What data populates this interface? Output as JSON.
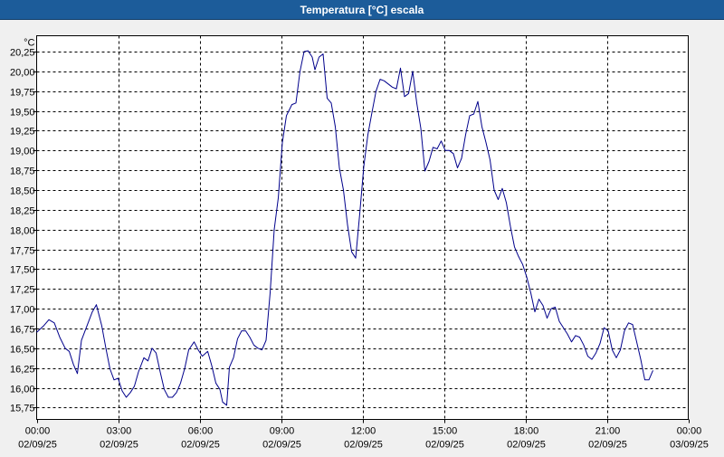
{
  "window": {
    "title": "Temperatura [°C] escala"
  },
  "chart_data": {
    "type": "line",
    "title": "Temperatura [°C] escala",
    "ylabel": "°C",
    "xlabel": "",
    "x_unit": "hours",
    "xlim": [
      0,
      24
    ],
    "ylim": [
      15.6,
      20.45
    ],
    "grid": true,
    "y_ticks": [
      15.75,
      16.0,
      16.25,
      16.5,
      16.75,
      17.0,
      17.25,
      17.5,
      17.75,
      18.0,
      18.25,
      18.5,
      18.75,
      19.0,
      19.25,
      19.5,
      19.75,
      20.0,
      20.25
    ],
    "y_tick_labels": [
      "15,75",
      "16,00",
      "16,25",
      "16,50",
      "16,75",
      "17,00",
      "17,25",
      "17,50",
      "17,75",
      "18,00",
      "18,25",
      "18,50",
      "18,75",
      "19,00",
      "19,25",
      "19,50",
      "19,75",
      "20,00",
      "20,25"
    ],
    "x_ticks": [
      {
        "x": 0,
        "time": "00:00",
        "date": "02/09/25"
      },
      {
        "x": 3,
        "time": "03:00",
        "date": "02/09/25"
      },
      {
        "x": 6,
        "time": "06:00",
        "date": "02/09/25"
      },
      {
        "x": 9,
        "time": "09:00",
        "date": "02/09/25"
      },
      {
        "x": 12,
        "time": "12:00",
        "date": "02/09/25"
      },
      {
        "x": 15,
        "time": "15:00",
        "date": "02/09/25"
      },
      {
        "x": 18,
        "time": "18:00",
        "date": "02/09/25"
      },
      {
        "x": 21,
        "time": "21:00",
        "date": "02/09/25"
      },
      {
        "x": 24,
        "time": "00:00",
        "date": "03/09/25"
      }
    ],
    "series": [
      {
        "color": "#00008b",
        "points": [
          [
            0.0,
            16.7
          ],
          [
            0.25,
            16.78
          ],
          [
            0.45,
            16.86
          ],
          [
            0.65,
            16.82
          ],
          [
            0.85,
            16.64
          ],
          [
            1.05,
            16.5
          ],
          [
            1.2,
            16.46
          ],
          [
            1.35,
            16.3
          ],
          [
            1.5,
            16.18
          ],
          [
            1.65,
            16.6
          ],
          [
            1.85,
            16.78
          ],
          [
            2.05,
            16.96
          ],
          [
            2.2,
            17.05
          ],
          [
            2.4,
            16.78
          ],
          [
            2.55,
            16.5
          ],
          [
            2.7,
            16.24
          ],
          [
            2.85,
            16.1
          ],
          [
            3.0,
            16.12
          ],
          [
            3.15,
            15.96
          ],
          [
            3.3,
            15.88
          ],
          [
            3.45,
            15.94
          ],
          [
            3.6,
            16.02
          ],
          [
            3.75,
            16.2
          ],
          [
            3.95,
            16.38
          ],
          [
            4.1,
            16.34
          ],
          [
            4.25,
            16.5
          ],
          [
            4.4,
            16.44
          ],
          [
            4.55,
            16.2
          ],
          [
            4.7,
            15.98
          ],
          [
            4.85,
            15.88
          ],
          [
            5.0,
            15.88
          ],
          [
            5.15,
            15.94
          ],
          [
            5.3,
            16.06
          ],
          [
            5.45,
            16.24
          ],
          [
            5.6,
            16.48
          ],
          [
            5.8,
            16.58
          ],
          [
            5.95,
            16.48
          ],
          [
            6.1,
            16.4
          ],
          [
            6.3,
            16.46
          ],
          [
            6.45,
            16.28
          ],
          [
            6.6,
            16.06
          ],
          [
            6.75,
            15.98
          ],
          [
            6.85,
            15.82
          ],
          [
            7.0,
            15.78
          ],
          [
            7.1,
            16.26
          ],
          [
            7.25,
            16.38
          ],
          [
            7.4,
            16.62
          ],
          [
            7.55,
            16.72
          ],
          [
            7.7,
            16.72
          ],
          [
            7.85,
            16.64
          ],
          [
            8.0,
            16.54
          ],
          [
            8.15,
            16.5
          ],
          [
            8.3,
            16.48
          ],
          [
            8.45,
            16.6
          ],
          [
            8.6,
            17.2
          ],
          [
            8.75,
            18.0
          ],
          [
            8.9,
            18.4
          ],
          [
            9.05,
            19.1
          ],
          [
            9.2,
            19.44
          ],
          [
            9.4,
            19.58
          ],
          [
            9.55,
            19.6
          ],
          [
            9.7,
            20.0
          ],
          [
            9.85,
            20.25
          ],
          [
            10.0,
            20.26
          ],
          [
            10.15,
            20.18
          ],
          [
            10.25,
            20.02
          ],
          [
            10.4,
            20.18
          ],
          [
            10.55,
            20.22
          ],
          [
            10.7,
            19.66
          ],
          [
            10.85,
            19.6
          ],
          [
            11.0,
            19.3
          ],
          [
            11.15,
            18.78
          ],
          [
            11.3,
            18.5
          ],
          [
            11.45,
            18.06
          ],
          [
            11.6,
            17.72
          ],
          [
            11.75,
            17.64
          ],
          [
            11.9,
            18.2
          ],
          [
            12.05,
            18.8
          ],
          [
            12.2,
            19.2
          ],
          [
            12.35,
            19.48
          ],
          [
            12.5,
            19.75
          ],
          [
            12.65,
            19.9
          ],
          [
            12.8,
            19.88
          ],
          [
            12.95,
            19.84
          ],
          [
            13.1,
            19.8
          ],
          [
            13.25,
            19.78
          ],
          [
            13.4,
            20.04
          ],
          [
            13.55,
            19.68
          ],
          [
            13.7,
            19.72
          ],
          [
            13.85,
            20.0
          ],
          [
            14.0,
            19.6
          ],
          [
            14.15,
            19.28
          ],
          [
            14.3,
            18.74
          ],
          [
            14.45,
            18.86
          ],
          [
            14.6,
            19.04
          ],
          [
            14.75,
            19.02
          ],
          [
            14.9,
            19.12
          ],
          [
            15.05,
            19.0
          ],
          [
            15.2,
            19.0
          ],
          [
            15.35,
            18.96
          ],
          [
            15.5,
            18.78
          ],
          [
            15.65,
            18.9
          ],
          [
            15.8,
            19.2
          ],
          [
            15.95,
            19.44
          ],
          [
            16.1,
            19.46
          ],
          [
            16.25,
            19.62
          ],
          [
            16.4,
            19.3
          ],
          [
            16.55,
            19.1
          ],
          [
            16.7,
            18.88
          ],
          [
            16.85,
            18.5
          ],
          [
            17.0,
            18.38
          ],
          [
            17.15,
            18.52
          ],
          [
            17.3,
            18.34
          ],
          [
            17.45,
            18.04
          ],
          [
            17.6,
            17.78
          ],
          [
            17.75,
            17.66
          ],
          [
            17.9,
            17.56
          ],
          [
            18.05,
            17.4
          ],
          [
            18.2,
            17.2
          ],
          [
            18.35,
            16.96
          ],
          [
            18.5,
            17.12
          ],
          [
            18.65,
            17.04
          ],
          [
            18.8,
            16.88
          ],
          [
            18.95,
            17.0
          ],
          [
            19.1,
            17.02
          ],
          [
            19.25,
            16.84
          ],
          [
            19.4,
            16.76
          ],
          [
            19.55,
            16.68
          ],
          [
            19.7,
            16.58
          ],
          [
            19.85,
            16.66
          ],
          [
            20.0,
            16.64
          ],
          [
            20.15,
            16.54
          ],
          [
            20.3,
            16.4
          ],
          [
            20.45,
            16.36
          ],
          [
            20.6,
            16.44
          ],
          [
            20.75,
            16.56
          ],
          [
            20.9,
            16.76
          ],
          [
            21.05,
            16.72
          ],
          [
            21.2,
            16.48
          ],
          [
            21.35,
            16.38
          ],
          [
            21.5,
            16.48
          ],
          [
            21.65,
            16.72
          ],
          [
            21.8,
            16.82
          ],
          [
            21.95,
            16.8
          ],
          [
            22.1,
            16.58
          ],
          [
            22.25,
            16.36
          ],
          [
            22.4,
            16.1
          ],
          [
            22.55,
            16.1
          ],
          [
            22.7,
            16.22
          ]
        ]
      }
    ]
  }
}
